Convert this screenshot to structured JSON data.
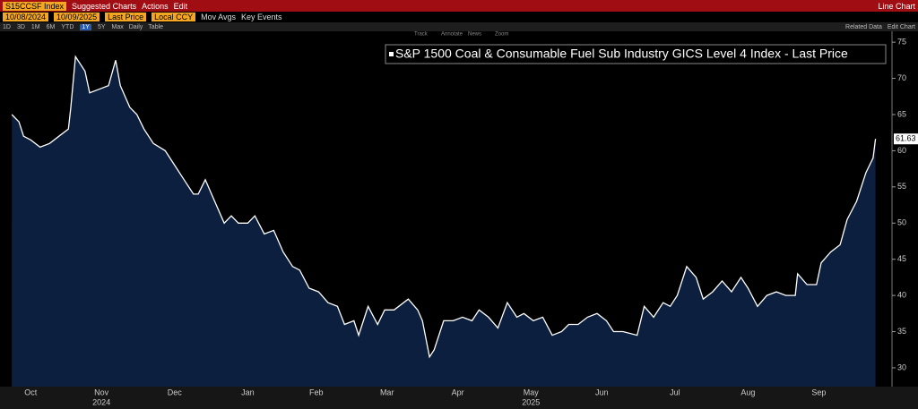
{
  "toolbar": {
    "ticker": "S15CCSF Index",
    "menus": [
      "Suggested Charts",
      "Actions",
      "Edit"
    ],
    "view": "Line Chart",
    "start_date": "10/08/2024",
    "end_date": "10/09/2025",
    "field": "Last Price",
    "currency": "Local CCY",
    "options": [
      "Mov Avgs",
      "Key Events"
    ],
    "periods": [
      "1D",
      "3D",
      "1M",
      "6M",
      "YTD",
      "1Y",
      "5Y",
      "Max"
    ],
    "frequency": "Daily",
    "table": "Table",
    "related": "Related Data",
    "edit_chart": "Edit Chart",
    "tools": [
      "Track",
      "Annotate",
      "News",
      "Zoom"
    ]
  },
  "chart_data": {
    "type": "line",
    "x": [
      "2024-10-08",
      "2024-10-11",
      "2024-10-13",
      "2024-10-16",
      "2024-10-20",
      "2024-10-24",
      "2024-10-28",
      "2024-11-01",
      "2024-11-02",
      "2024-11-04",
      "2024-11-08",
      "2024-11-10",
      "2024-11-14",
      "2024-11-18",
      "2024-11-21",
      "2024-11-23",
      "2024-11-27",
      "2024-11-30",
      "2024-12-03",
      "2024-12-07",
      "2024-12-12",
      "2024-12-16",
      "2024-12-20",
      "2024-12-24",
      "2024-12-26",
      "2024-12-29",
      "2025-01-02",
      "2025-01-06",
      "2025-01-09",
      "2025-01-12",
      "2025-01-16",
      "2025-01-19",
      "2025-01-23",
      "2025-01-27",
      "2025-01-31",
      "2025-02-04",
      "2025-02-07",
      "2025-02-11",
      "2025-02-15",
      "2025-02-19",
      "2025-02-23",
      "2025-02-26",
      "2025-03-02",
      "2025-03-04",
      "2025-03-08",
      "2025-03-12",
      "2025-03-15",
      "2025-03-19",
      "2025-03-25",
      "2025-03-29",
      "2025-03-31",
      "2025-04-03",
      "2025-04-05",
      "2025-04-09",
      "2025-04-13",
      "2025-04-17",
      "2025-04-21",
      "2025-04-24",
      "2025-04-28",
      "2025-05-02",
      "2025-05-06",
      "2025-05-10",
      "2025-05-13",
      "2025-05-17",
      "2025-05-21",
      "2025-05-25",
      "2025-05-29",
      "2025-06-01",
      "2025-06-05",
      "2025-06-09",
      "2025-06-13",
      "2025-06-17",
      "2025-06-20",
      "2025-06-24",
      "2025-06-30",
      "2025-07-03",
      "2025-07-07",
      "2025-07-11",
      "2025-07-14",
      "2025-07-17",
      "2025-07-21",
      "2025-07-25",
      "2025-07-28",
      "2025-08-01",
      "2025-08-05",
      "2025-08-09",
      "2025-08-13",
      "2025-08-16",
      "2025-08-20",
      "2025-08-24",
      "2025-08-28",
      "2025-09-01",
      "2025-09-05",
      "2025-09-06",
      "2025-09-10",
      "2025-09-14",
      "2025-09-16",
      "2025-09-20",
      "2025-09-24",
      "2025-09-27",
      "2025-10-01",
      "2025-10-05",
      "2025-10-08",
      "2025-10-09"
    ],
    "series": [
      {
        "name": "S&P 1500 Coal & Consumable Fuel Sub Industry GICS Level 4 Index - Last Price",
        "color": "#ffffff",
        "fill": "#0c1f3f",
        "values": [
          65,
          64,
          62,
          61.5,
          60.5,
          61,
          62,
          63,
          66,
          73,
          71,
          68,
          68.5,
          69,
          72.5,
          69,
          66,
          65,
          63,
          61,
          60,
          58,
          56,
          54,
          54,
          56,
          53,
          50,
          51,
          50,
          50,
          51,
          48.5,
          49,
          46,
          44,
          43.5,
          41,
          40.5,
          39,
          38.5,
          36,
          36.5,
          34.5,
          38.5,
          36,
          38,
          38,
          39.5,
          38,
          36.5,
          31.5,
          32.5,
          36.5,
          36.5,
          37,
          36.5,
          38,
          37,
          35.5,
          39,
          37,
          37.5,
          36.5,
          37,
          34.5,
          35,
          36,
          36,
          37,
          37.5,
          36.5,
          35,
          35,
          34.5,
          38.5,
          37,
          39,
          38.5,
          40,
          44,
          42.5,
          39.5,
          40.5,
          42,
          40.5,
          42.5,
          41,
          38.5,
          40,
          40.5,
          40,
          40,
          43,
          41.5,
          41.5,
          44.5,
          46,
          47,
          50.5,
          53,
          57,
          59,
          61.63
        ]
      }
    ],
    "xlim": [
      "2024-10-03",
      "2025-10-16"
    ],
    "xticks": [
      {
        "value": "2024-10-16",
        "label": "Oct"
      },
      {
        "value": "2024-11-15",
        "label": "Nov"
      },
      {
        "value": "2024-12-16",
        "label": "Dec"
      },
      {
        "value": "2025-01-16",
        "label": "Jan"
      },
      {
        "value": "2025-02-14",
        "label": "Feb"
      },
      {
        "value": "2025-03-16",
        "label": "Mar"
      },
      {
        "value": "2025-04-15",
        "label": "Apr"
      },
      {
        "value": "2025-05-16",
        "label": "May"
      },
      {
        "value": "2025-06-15",
        "label": "Jun"
      },
      {
        "value": "2025-07-16",
        "label": "Jul"
      },
      {
        "value": "2025-08-16",
        "label": "Aug"
      },
      {
        "value": "2025-09-15",
        "label": "Sep"
      }
    ],
    "year_labels": [
      {
        "value": "2024-11-15",
        "label": "2024"
      },
      {
        "value": "2025-05-16",
        "label": "2025"
      }
    ],
    "ylim": [
      27.4,
      76.5
    ],
    "yticks": [
      30,
      35,
      40,
      45,
      50,
      55,
      60,
      65,
      70,
      75
    ],
    "grid": false
  }
}
